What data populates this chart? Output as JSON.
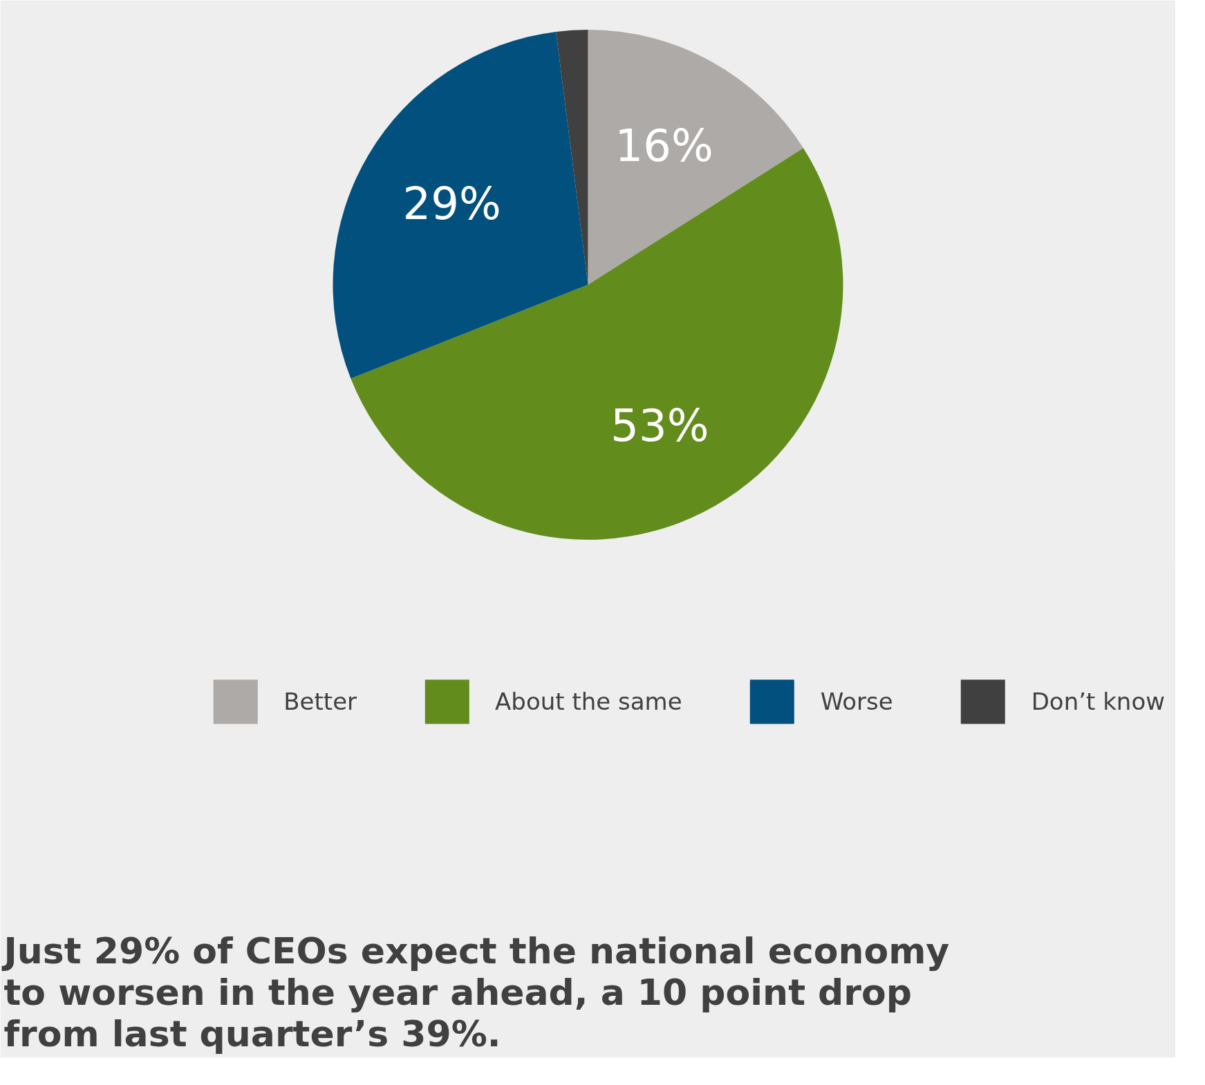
{
  "chart_data": {
    "type": "pie",
    "title": "Just 29% of CEOs expect the national economy to worsen in the year ahead, a 10 point drop from last quarter’s 39%.",
    "categories": [
      "Better",
      "About the same",
      "Worse",
      "Don’t know"
    ],
    "values": [
      16,
      53,
      29,
      2
    ],
    "colors": [
      "#aeaaa7",
      "#628c1c",
      "#01507e",
      "#404040"
    ],
    "value_labels": [
      "16%",
      "53%",
      "29%",
      null
    ],
    "legend": "bottom"
  }
}
